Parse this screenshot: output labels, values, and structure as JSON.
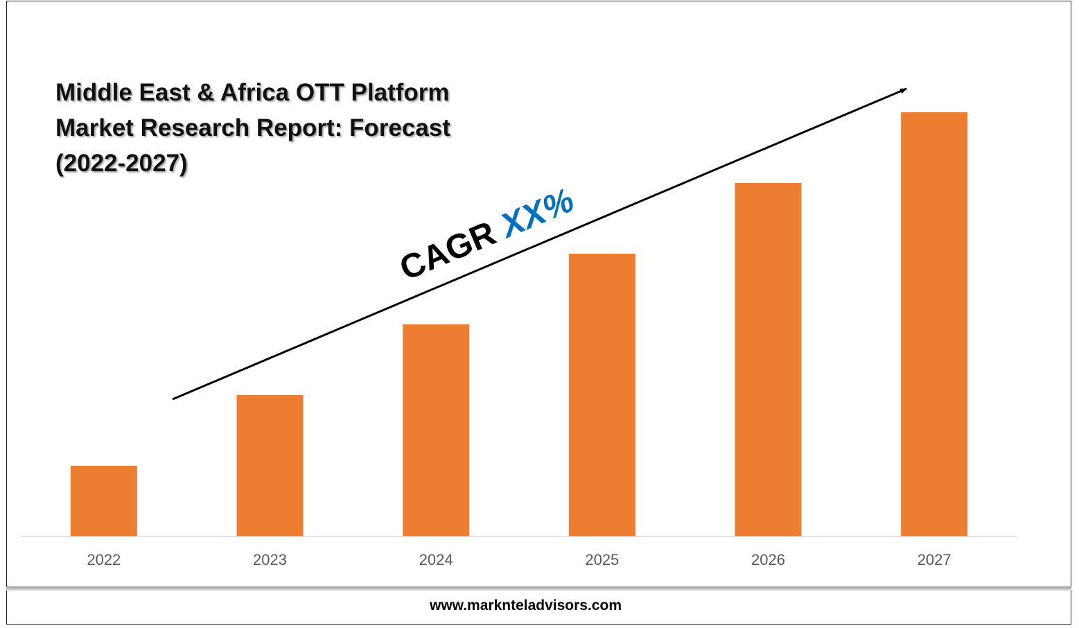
{
  "chart_data": {
    "type": "bar",
    "title_lines": [
      "Middle East & Africa OTT Platform",
      "Market Research Report: Forecast",
      "(2022-2027)"
    ],
    "categories": [
      "2022",
      "2023",
      "2024",
      "2025",
      "2026",
      "2027"
    ],
    "values": [
      1,
      2,
      3,
      4,
      5,
      6
    ],
    "ylim": [
      0,
      6
    ],
    "grid": false,
    "bar_color": "#ED7D31",
    "annotation": {
      "text_black": "CAGR ",
      "text_blue": "XX%",
      "blue_color": "#0070C0"
    }
  },
  "footer": {
    "url": "www.marknteladvisors.com"
  }
}
